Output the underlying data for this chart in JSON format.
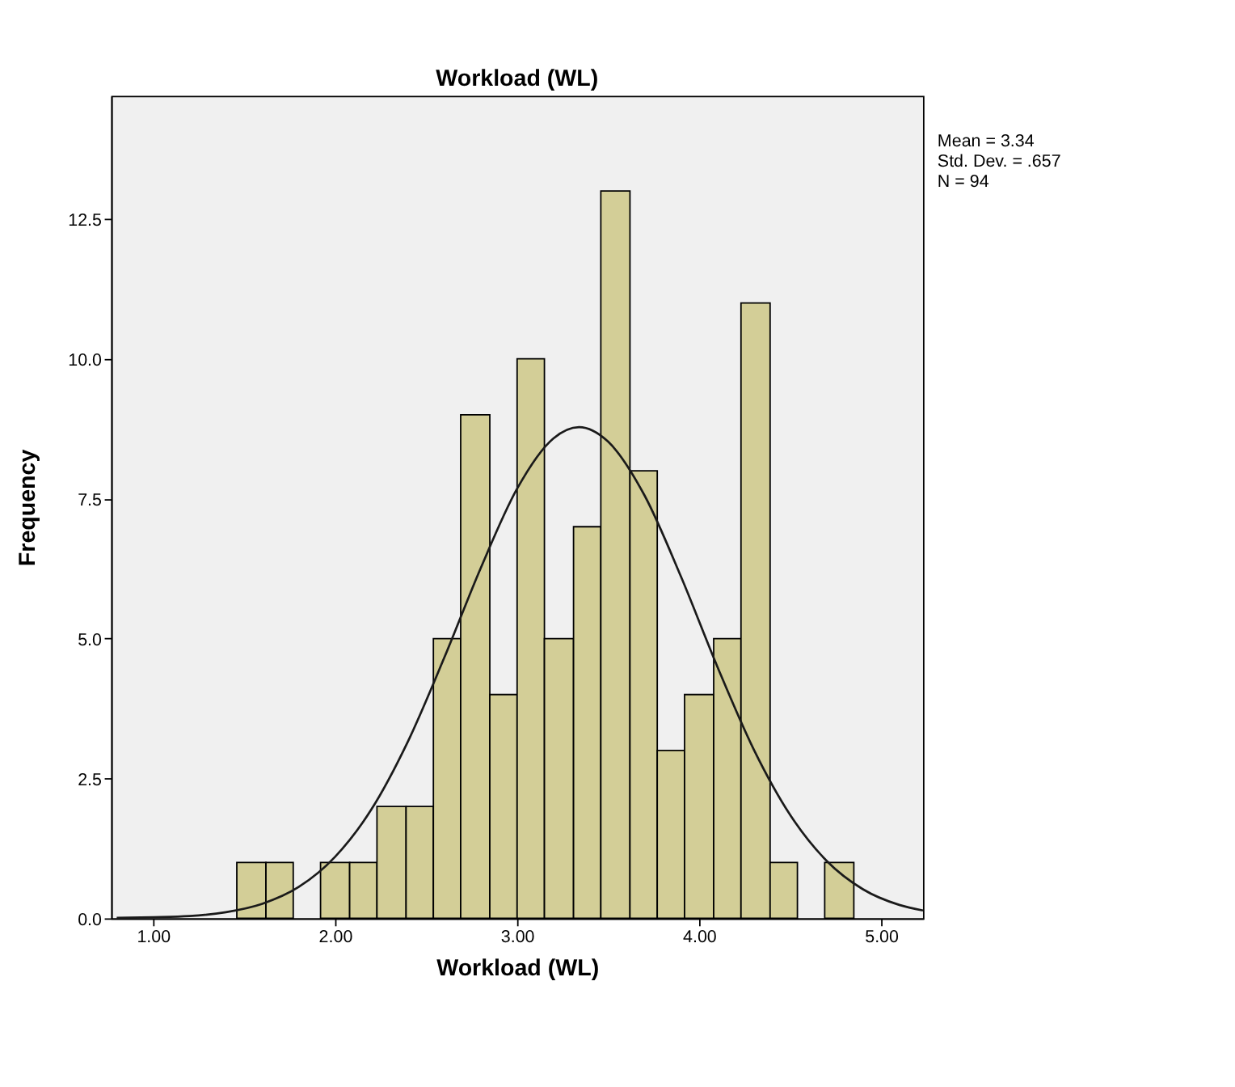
{
  "chart_data": {
    "type": "histogram",
    "title": "Workload (WL)",
    "xlabel": "Workload (WL)",
    "ylabel": "Frequency",
    "series": [
      {
        "color": "#d3ce97",
        "bins": [
          1.46,
          1.62,
          1.77,
          1.92,
          2.08,
          2.23,
          2.39,
          2.54,
          2.69,
          2.85,
          3.0,
          3.15,
          3.31,
          3.46,
          3.62,
          3.77,
          3.92,
          4.08,
          4.23,
          4.39,
          4.54,
          4.69,
          4.85
        ],
        "values": [
          1,
          1,
          0,
          1,
          1,
          2,
          2,
          5,
          9,
          4,
          10,
          5,
          7,
          13,
          8,
          3,
          4,
          5,
          11,
          1,
          0,
          1
        ]
      },
      {
        "type": "line",
        "color": "#1a1a1a",
        "x": [
          0.8,
          1.0,
          1.2,
          1.4,
          1.6,
          1.8,
          2.0,
          2.2,
          2.4,
          2.6,
          2.8,
          3.0,
          3.2,
          3.34,
          3.5,
          3.7,
          3.9,
          4.1,
          4.3,
          4.5,
          4.7,
          4.9,
          5.1,
          5.23
        ],
        "values": [
          0.01,
          0.02,
          0.04,
          0.11,
          0.26,
          0.56,
          1.1,
          1.95,
          3.16,
          4.66,
          6.26,
          7.68,
          8.58,
          8.78,
          8.52,
          7.56,
          6.11,
          4.5,
          3.02,
          1.85,
          1.03,
          0.52,
          0.24,
          0.14
        ]
      }
    ],
    "xlim": [
      0.77,
      5.23
    ],
    "ylim": [
      0,
      14.7
    ],
    "xticks": [
      {
        "value": 1,
        "label": "1.00"
      },
      {
        "value": 2,
        "label": "2.00"
      },
      {
        "value": 3,
        "label": "3.00"
      },
      {
        "value": 4,
        "label": "4.00"
      },
      {
        "value": 5,
        "label": "5.00"
      }
    ],
    "yticks": [
      {
        "value": 0,
        "label": "0.0"
      },
      {
        "value": 2.5,
        "label": "2.5"
      },
      {
        "value": 5,
        "label": "5.0"
      },
      {
        "value": 7.5,
        "label": "7.5"
      },
      {
        "value": 10,
        "label": "10.0"
      },
      {
        "value": 12.5,
        "label": "12.5"
      }
    ],
    "grid": false,
    "legend": false,
    "line_style": "solid",
    "marker": "none",
    "annotations": [
      "Mean = 3.34",
      "Std. Dev. = .657",
      "N = 94"
    ]
  }
}
